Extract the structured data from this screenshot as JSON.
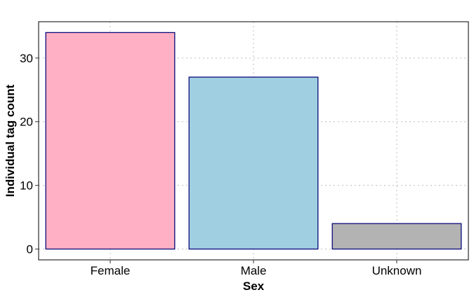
{
  "chart_data": {
    "type": "bar",
    "title": "",
    "xlabel": "Sex",
    "ylabel": "Individual tag count",
    "categories": [
      "Female",
      "Male",
      "Unknown"
    ],
    "values": [
      34,
      27,
      4
    ],
    "bar_colors": [
      "#ffb0c4",
      "#a0cfe1",
      "#b3b3b3"
    ],
    "bar_outline_color": "#0a0a7a",
    "ylim": [
      -1.7,
      35.7
    ],
    "yticks": [
      0,
      10,
      20,
      30
    ],
    "grid": true,
    "grid_style": "dotted",
    "legend": false
  }
}
